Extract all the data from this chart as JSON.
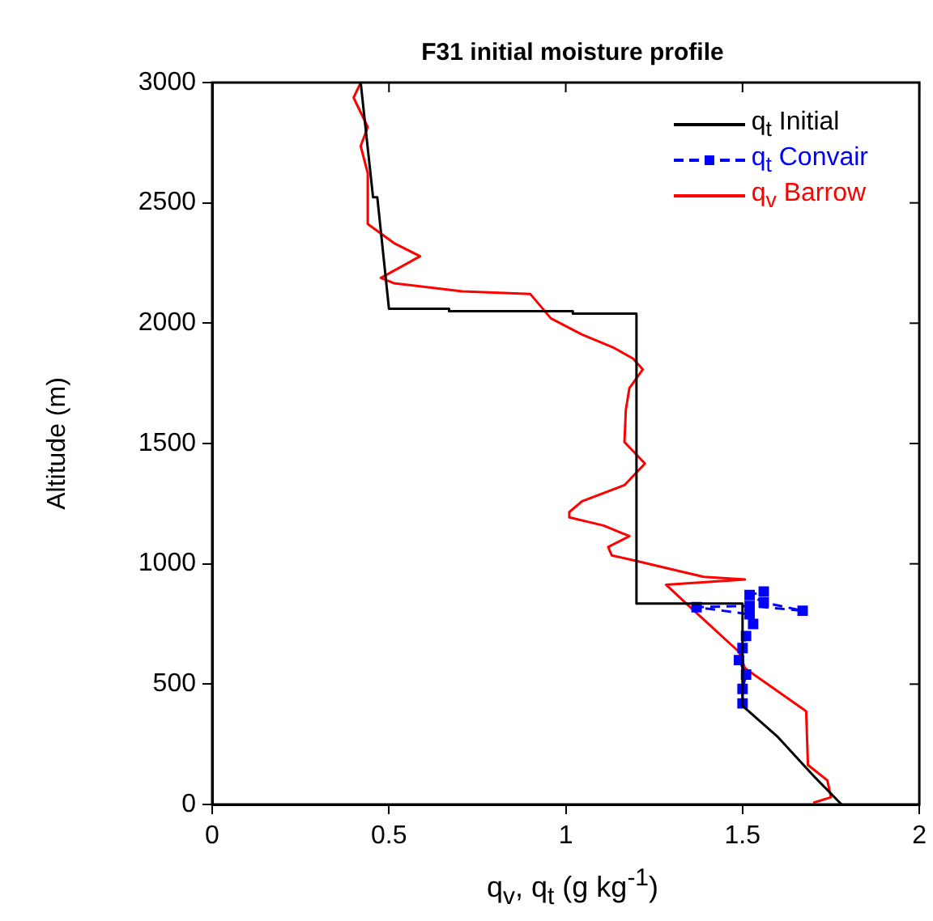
{
  "chart_data": {
    "type": "line",
    "title": "F31 initial moisture profile",
    "xlabel": "q$_{v}$, q$_{t}$ (g kg$^{-1}$)",
    "ylabel": "Altitude (m)",
    "xlim": [
      0,
      2
    ],
    "xticks": [
      0,
      0.5,
      1,
      1.5,
      2
    ],
    "ylim": [
      0,
      3000
    ],
    "yticks": [
      0,
      500,
      1000,
      1500,
      2000,
      2500,
      3000
    ],
    "grid": false,
    "legend": "top right",
    "series": [
      {
        "name": "q$_{t}$ Initial",
        "color": "#000000",
        "line_style": "solid",
        "marker": "none",
        "x": [
          0.42,
          0.455,
          0.467,
          0.5,
          0.67,
          0.67,
          1.02,
          1.02,
          1.2,
          1.2,
          1.5,
          1.5,
          1.6,
          1.7,
          1.78
        ],
        "values": [
          3000,
          2523,
          2523,
          2060,
          2060,
          2050,
          2050,
          2040,
          2040,
          835,
          835,
          410,
          280,
          120,
          0
        ]
      },
      {
        "name": "q$_{t}$ Convair",
        "color": "#0000ff",
        "line_style": "dashed",
        "marker": "square",
        "x": [
          1.5,
          1.5,
          1.51,
          1.49,
          1.5,
          1.51,
          1.53,
          1.52,
          1.37,
          1.52,
          1.67,
          1.56,
          1.52,
          1.56
        ],
        "values": [
          420,
          480,
          540,
          600,
          650,
          700,
          750,
          790,
          820,
          825,
          805,
          840,
          870,
          885
        ]
      },
      {
        "name": "q$_{v}$ Barrow",
        "color": "#ff0000",
        "line_style": "solid",
        "marker": "none",
        "x": [
          1.7,
          1.75,
          1.74,
          1.685,
          1.68,
          1.67,
          1.507,
          1.49,
          1.358,
          1.284,
          1.507,
          1.39,
          1.196,
          1.13,
          1.12,
          1.18,
          1.107,
          1.01,
          1.01,
          1.046,
          1.166,
          1.224,
          1.166,
          1.17,
          1.18,
          1.218,
          1.19,
          1.137,
          1.046,
          0.958,
          0.9,
          0.707,
          0.514,
          0.477,
          0.588,
          0.514,
          0.44,
          0.44,
          0.42,
          0.44,
          0.4,
          0.42
        ],
        "values": [
          7,
          30,
          100,
          164,
          387,
          398,
          566,
          634,
          812,
          913,
          935,
          946,
          1013,
          1035,
          1070,
          1115,
          1159,
          1193,
          1215,
          1260,
          1327,
          1417,
          1506,
          1640,
          1730,
          1808,
          1853,
          1897,
          1953,
          2020,
          2121,
          2132,
          2166,
          2188,
          2278,
          2333,
          2412,
          2624,
          2736,
          2815,
          2937,
          3000
        ]
      }
    ]
  }
}
